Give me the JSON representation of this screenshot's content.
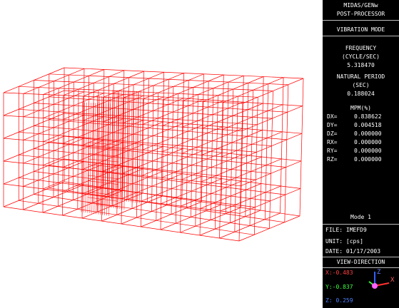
{
  "header": {
    "program": "MIDAS/GENw",
    "module": "POST-PROCESSOR"
  },
  "mode_title": "VIBRATION MODE",
  "frequency": {
    "label": "FREQUENCY",
    "unit": "(CYCLE/SEC)",
    "value": "5.318470"
  },
  "period": {
    "label": "NATURAL PERIOD",
    "unit": "(SEC)",
    "value": "0.188024"
  },
  "mpm": {
    "label": "MPM(%)",
    "rows": [
      [
        "DX=",
        "0.838622"
      ],
      [
        "DY=",
        "0.004518"
      ],
      [
        "DZ=",
        "0.000000"
      ],
      [
        "RX=",
        "0.000000"
      ],
      [
        "RY=",
        "0.000000"
      ],
      [
        "RZ=",
        "0.000000"
      ]
    ]
  },
  "mode": "Mode 1",
  "file": "FILE: IMEFD9",
  "unit": "UNIT: [cps]",
  "date": "DATE: 01/17/2003",
  "view": {
    "label": "VIEW-DIRECTION",
    "x": "X:-0.483",
    "y": "Y:-0.837",
    "z": "Z: 0.259"
  },
  "axes": {
    "z": "Z",
    "x": "X"
  }
}
